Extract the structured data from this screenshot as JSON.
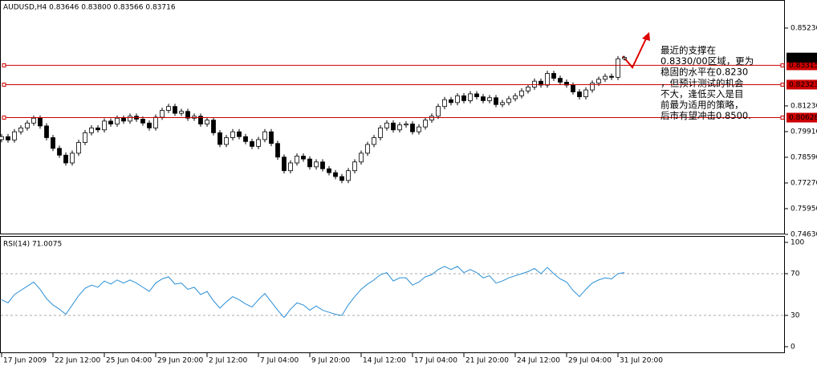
{
  "chart_data": [
    {
      "type": "candlestick",
      "title": "AUDUSD,H4  0.83646 0.83800 0.83566 0.83716",
      "open": [
        0.795,
        0.7965,
        0.7948,
        0.799,
        0.801,
        0.8035,
        0.806,
        0.802,
        0.796,
        0.7905,
        0.787,
        0.783,
        0.788,
        0.7935,
        0.7985,
        0.801,
        0.8,
        0.8045,
        0.803,
        0.806,
        0.8045,
        0.807,
        0.8055,
        0.8035,
        0.801,
        0.8065,
        0.81,
        0.812,
        0.8085,
        0.8095,
        0.806,
        0.807,
        0.803,
        0.805,
        0.7985,
        0.7925,
        0.796,
        0.799,
        0.7965,
        0.794,
        0.7915,
        0.795,
        0.799,
        0.793,
        0.786,
        0.779,
        0.783,
        0.7865,
        0.785,
        0.781,
        0.7835,
        0.78,
        0.778,
        0.776,
        0.774,
        0.779,
        0.7835,
        0.788,
        0.7925,
        0.796,
        0.801,
        0.8035,
        0.8,
        0.8025,
        0.803,
        0.799,
        0.8015,
        0.805,
        0.807,
        0.812,
        0.8155,
        0.814,
        0.8175,
        0.815,
        0.8185,
        0.817,
        0.815,
        0.8165,
        0.813,
        0.814,
        0.816,
        0.8175,
        0.82,
        0.822,
        0.825,
        0.823,
        0.829,
        0.8265,
        0.8245,
        0.823,
        0.8195,
        0.817,
        0.8205,
        0.824,
        0.826,
        0.8275,
        0.827,
        0.8365
      ],
      "high": [
        0.7979,
        0.7979,
        0.8004,
        0.8024,
        0.8049,
        0.8074,
        0.8074,
        0.8034,
        0.7974,
        0.7919,
        0.7884,
        0.7894,
        0.7949,
        0.7999,
        0.8024,
        0.8024,
        0.8059,
        0.8059,
        0.8074,
        0.8074,
        0.8084,
        0.8084,
        0.8069,
        0.8049,
        0.8079,
        0.8114,
        0.8134,
        0.8134,
        0.8109,
        0.8109,
        0.8084,
        0.8084,
        0.8064,
        0.8064,
        0.7999,
        0.7974,
        0.8004,
        0.8004,
        0.7979,
        0.7954,
        0.7964,
        0.8004,
        0.8004,
        0.7944,
        0.7874,
        0.7844,
        0.7879,
        0.7879,
        0.7864,
        0.7849,
        0.7849,
        0.7814,
        0.7794,
        0.7774,
        0.7804,
        0.7849,
        0.7894,
        0.7939,
        0.7974,
        0.8024,
        0.8049,
        0.8049,
        0.8039,
        0.8044,
        0.8044,
        0.8029,
        0.8064,
        0.8084,
        0.8134,
        0.8169,
        0.8169,
        0.8189,
        0.8189,
        0.8199,
        0.8199,
        0.8184,
        0.8179,
        0.8179,
        0.8154,
        0.8174,
        0.8189,
        0.8214,
        0.8234,
        0.8264,
        0.8264,
        0.8304,
        0.8304,
        0.8279,
        0.8259,
        0.8244,
        0.8209,
        0.8219,
        0.8254,
        0.8274,
        0.8289,
        0.8289,
        0.8379,
        0.838
      ],
      "low": [
        0.7936,
        0.7934,
        0.7934,
        0.7976,
        0.7996,
        0.8021,
        0.8006,
        0.7946,
        0.7891,
        0.7856,
        0.7816,
        0.7816,
        0.7866,
        0.7921,
        0.7971,
        0.7986,
        0.7986,
        0.8016,
        0.8016,
        0.8031,
        0.8031,
        0.8041,
        0.8021,
        0.7996,
        0.7996,
        0.8051,
        0.8086,
        0.8071,
        0.8071,
        0.8046,
        0.8046,
        0.8016,
        0.8016,
        0.7971,
        0.7911,
        0.7911,
        0.7946,
        0.7951,
        0.7926,
        0.7901,
        0.7901,
        0.7936,
        0.7916,
        0.7846,
        0.7776,
        0.7776,
        0.7816,
        0.7836,
        0.7796,
        0.7796,
        0.7786,
        0.7766,
        0.7746,
        0.7726,
        0.7726,
        0.7776,
        0.7821,
        0.7866,
        0.7911,
        0.7946,
        0.7996,
        0.7986,
        0.7986,
        0.8011,
        0.7976,
        0.7976,
        0.8001,
        0.8036,
        0.8056,
        0.8106,
        0.8126,
        0.8126,
        0.8136,
        0.8136,
        0.8156,
        0.8136,
        0.8136,
        0.8116,
        0.8116,
        0.8126,
        0.8146,
        0.8161,
        0.8186,
        0.8206,
        0.8216,
        0.8216,
        0.8251,
        0.8231,
        0.8216,
        0.8181,
        0.8156,
        0.8156,
        0.8191,
        0.8226,
        0.8246,
        0.8256,
        0.8256,
        0.8357
      ],
      "close": [
        0.7965,
        0.7948,
        0.799,
        0.801,
        0.8035,
        0.806,
        0.802,
        0.796,
        0.7905,
        0.787,
        0.783,
        0.788,
        0.7935,
        0.7985,
        0.801,
        0.8,
        0.8045,
        0.803,
        0.806,
        0.8045,
        0.807,
        0.8055,
        0.8035,
        0.801,
        0.8065,
        0.81,
        0.812,
        0.8085,
        0.8095,
        0.806,
        0.807,
        0.803,
        0.805,
        0.7985,
        0.7925,
        0.796,
        0.799,
        0.7965,
        0.794,
        0.7915,
        0.795,
        0.799,
        0.793,
        0.786,
        0.779,
        0.783,
        0.7865,
        0.785,
        0.781,
        0.7835,
        0.78,
        0.778,
        0.776,
        0.774,
        0.779,
        0.7835,
        0.788,
        0.7925,
        0.796,
        0.801,
        0.8035,
        0.8,
        0.8025,
        0.803,
        0.799,
        0.8015,
        0.805,
        0.807,
        0.812,
        0.8155,
        0.814,
        0.8175,
        0.815,
        0.8185,
        0.817,
        0.815,
        0.8165,
        0.813,
        0.814,
        0.816,
        0.8175,
        0.82,
        0.822,
        0.825,
        0.823,
        0.829,
        0.8265,
        0.8245,
        0.823,
        0.8195,
        0.817,
        0.8205,
        0.824,
        0.826,
        0.8275,
        0.827,
        0.8365,
        0.8372
      ],
      "ylim": [
        0.7467,
        0.8659
      ],
      "yticks": [
        {
          "value": 0.8523,
          "label": "0.85230"
        },
        {
          "value": 0.8123,
          "label": "0.81230"
        },
        {
          "value": 0.7991,
          "label": "0.79910"
        },
        {
          "value": 0.7859,
          "label": "0.78590"
        },
        {
          "value": 0.7727,
          "label": "0.77270"
        },
        {
          "value": 0.7595,
          "label": "0.75950"
        },
        {
          "value": 0.7463,
          "label": "0.74630"
        }
      ],
      "levels": [
        {
          "value": 0.83315,
          "label": "0.83315"
        },
        {
          "value": 0.82323,
          "label": "0.82323"
        },
        {
          "value": 0.80628,
          "label": "0.80628"
        }
      ],
      "level_color": "#cc0000",
      "current_price": {
        "value": 0.83716,
        "label": "0.83716"
      },
      "annotation": {
        "lines": [
          "最近的支撑在",
          "0.8330/00区域，更为",
          "稳固的水平在0.8230",
          "，但预计测试的机会",
          "不大，逢低买入是目",
          "前最为适用的策略，",
          "后市有望冲击0.8500."
        ],
        "color": "#cc0000"
      }
    },
    {
      "type": "line",
      "title": "RSI(14) 71.0075",
      "categories": [
        "17 Jun 2009",
        null,
        null,
        null,
        null,
        null,
        null,
        null,
        "22 Jun 12:00",
        null,
        null,
        null,
        null,
        null,
        null,
        null,
        "25 Jun 04:00",
        null,
        null,
        null,
        null,
        null,
        null,
        null,
        "29 Jun 20:00",
        null,
        null,
        null,
        null,
        null,
        null,
        null,
        "2 Jul 12:00",
        null,
        null,
        null,
        null,
        null,
        null,
        null,
        "7 Jul 04:00",
        null,
        null,
        null,
        null,
        null,
        null,
        null,
        "9 Jul 20:00",
        null,
        null,
        null,
        null,
        null,
        null,
        null,
        "14 Jul 12:00",
        null,
        null,
        null,
        null,
        null,
        null,
        null,
        "17 Jul 04:00",
        null,
        null,
        null,
        null,
        null,
        null,
        null,
        "21 Jul 20:00",
        null,
        null,
        null,
        null,
        null,
        null,
        null,
        "24 Jul 12:00",
        null,
        null,
        null,
        null,
        null,
        null,
        null,
        "29 Jul 04:00",
        null,
        null,
        null,
        null,
        null,
        null,
        null,
        "31 Jul 20:00",
        null
      ],
      "series": [
        {
          "name": "RSI(14)",
          "color": "#2a8fd6",
          "values": [
            45,
            42,
            50,
            54,
            58,
            62,
            55,
            46,
            40,
            36,
            31,
            40,
            49,
            56,
            59,
            57,
            63,
            60,
            64,
            61,
            64,
            61,
            57,
            53,
            61,
            65,
            67,
            60,
            61,
            55,
            57,
            50,
            53,
            44,
            37,
            43,
            48,
            45,
            41,
            38,
            45,
            51,
            43,
            35,
            28,
            36,
            42,
            40,
            35,
            39,
            35,
            33,
            31,
            30,
            40,
            48,
            55,
            60,
            64,
            69,
            71,
            63,
            66,
            66,
            59,
            62,
            67,
            69,
            74,
            77,
            74,
            77,
            71,
            74,
            71,
            66,
            68,
            61,
            63,
            66,
            68,
            70,
            72,
            75,
            70,
            76,
            70,
            65,
            62,
            54,
            48,
            55,
            61,
            64,
            66,
            65,
            70,
            71
          ]
        }
      ],
      "ylim": [
        -6.2,
        104.6
      ],
      "yticks": [
        0,
        30,
        70,
        100
      ],
      "levels": [
        30,
        70
      ]
    }
  ]
}
